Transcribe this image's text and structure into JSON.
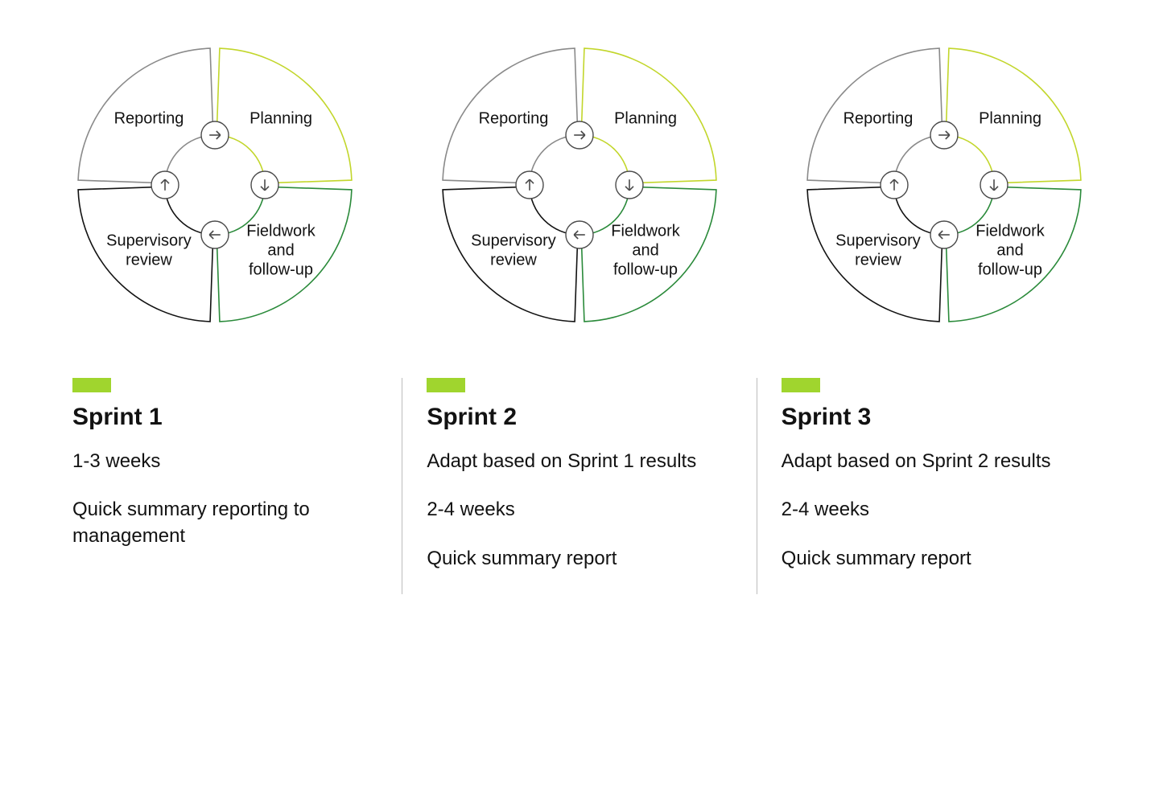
{
  "colors": {
    "background": "#ffffff",
    "text": "#121212",
    "accent_bar": "#a0d52e",
    "divider": "#bdbdbd",
    "quadrant_reporting": "#8a8a8a",
    "quadrant_planning": "#c2d62b",
    "quadrant_fieldwork": "#2a8a3a",
    "quadrant_supervisory": "#121212",
    "arrow_stroke": "#4a4a4a"
  },
  "diagram": {
    "outer_radius": 170,
    "inner_radius": 62,
    "gap_deg": 2,
    "arrow_circle_r": 17,
    "label_fontsize": 20,
    "stroke_width": 1.6,
    "quadrants": [
      {
        "key": "reporting",
        "label": "Reporting",
        "color_key": "quadrant_reporting"
      },
      {
        "key": "planning",
        "label": "Planning",
        "color_key": "quadrant_planning"
      },
      {
        "key": "fieldwork",
        "label_lines": [
          "Fieldwork",
          "and",
          "follow-up"
        ],
        "color_key": "quadrant_fieldwork"
      },
      {
        "key": "supervisory",
        "label_lines": [
          "Supervisory",
          "review"
        ],
        "color_key": "quadrant_supervisory"
      }
    ]
  },
  "sprints": [
    {
      "title": "Sprint 1",
      "paragraphs": [
        "1-3 weeks",
        "Quick summary reporting to management"
      ]
    },
    {
      "title": "Sprint 2",
      "paragraphs": [
        "Adapt based on Sprint 1 results",
        "2-4 weeks",
        "Quick summary report"
      ]
    },
    {
      "title": "Sprint 3",
      "paragraphs": [
        "Adapt based on Sprint 2 results",
        "2-4 weeks",
        "Quick summary report"
      ]
    }
  ]
}
